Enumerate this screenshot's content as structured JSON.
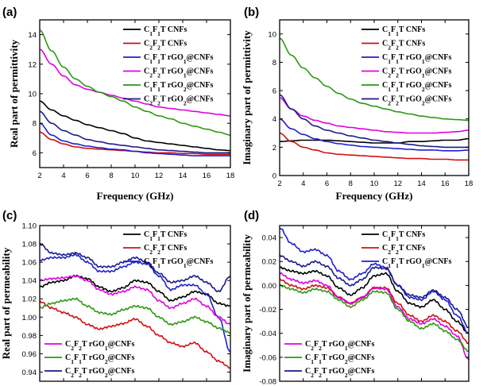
{
  "chart_data": [
    {
      "type": "line",
      "panel_label": "(a)",
      "title": "",
      "xlabel": "Frequency (GHz)",
      "ylabel": "Real part of permittivity",
      "xlim": [
        2,
        18
      ],
      "ylim": [
        5,
        15
      ],
      "xticks": [
        2,
        4,
        6,
        8,
        10,
        12,
        14,
        16,
        18
      ],
      "yticks": [
        6,
        8,
        10,
        12,
        14
      ],
      "legend_position": "top-right",
      "x": [
        2,
        3,
        4,
        5,
        6,
        7,
        8,
        9,
        10,
        11,
        12,
        13,
        14,
        15,
        16,
        17,
        18
      ],
      "series": [
        {
          "name": "C1F1T CNFs",
          "color": "#000000",
          "values": [
            9.5,
            8.9,
            8.5,
            8.2,
            7.9,
            7.7,
            7.5,
            7.3,
            7.0,
            6.8,
            6.7,
            6.6,
            6.5,
            6.4,
            6.3,
            6.2,
            6.15
          ]
        },
        {
          "name": "C2F2T CNFs",
          "color": "#d01010",
          "values": [
            7.4,
            6.9,
            6.6,
            6.4,
            6.3,
            6.25,
            6.2,
            6.15,
            6.1,
            6.05,
            6.0,
            6.0,
            5.95,
            5.95,
            5.9,
            5.9,
            5.9
          ]
        },
        {
          "name": "C1F1T rGO1@CNFs",
          "color": "#1f1fd0",
          "values": [
            8.0,
            7.2,
            6.8,
            6.6,
            6.45,
            6.35,
            6.25,
            6.2,
            6.1,
            6.0,
            5.95,
            5.9,
            5.85,
            5.8,
            5.8,
            5.8,
            5.8
          ]
        },
        {
          "name": "C2F2T rGO1@CNFs",
          "color": "#e000e0",
          "values": [
            13.0,
            12.0,
            11.2,
            10.6,
            10.3,
            10.1,
            9.9,
            9.7,
            9.5,
            9.3,
            9.1,
            9.0,
            8.9,
            8.8,
            8.7,
            8.6,
            8.5
          ]
        },
        {
          "name": "C1F1T rGO2@CNFs",
          "color": "#2a9a10",
          "values": [
            14.3,
            12.9,
            11.8,
            11.0,
            10.5,
            10.1,
            9.8,
            9.5,
            9.1,
            8.8,
            8.5,
            8.3,
            8.0,
            7.8,
            7.6,
            7.4,
            7.2
          ]
        },
        {
          "name": "C2F2T rGO2@CNFs",
          "color": "#1a1a8a",
          "values": [
            8.8,
            8.0,
            7.5,
            7.2,
            6.9,
            6.75,
            6.6,
            6.5,
            6.4,
            6.3,
            6.2,
            6.15,
            6.1,
            6.05,
            6.0,
            6.0,
            6.0
          ]
        }
      ]
    },
    {
      "type": "line",
      "panel_label": "(b)",
      "title": "",
      "xlabel": "Frequency (GHz)",
      "ylabel": "Imaginary part of permittivity",
      "xlim": [
        2,
        18
      ],
      "ylim": [
        0,
        11
      ],
      "xticks": [
        2,
        4,
        6,
        8,
        10,
        12,
        14,
        16,
        18
      ],
      "yticks": [
        0,
        2,
        4,
        6,
        8,
        10
      ],
      "legend_position": "top-right",
      "x": [
        2,
        3,
        4,
        5,
        6,
        7,
        8,
        9,
        10,
        11,
        12,
        13,
        14,
        15,
        16,
        17,
        18
      ],
      "series": [
        {
          "name": "C1F1T CNFs",
          "color": "#000000",
          "values": [
            2.4,
            2.45,
            2.5,
            2.5,
            2.5,
            2.45,
            2.4,
            2.35,
            2.3,
            2.3,
            2.3,
            2.4,
            2.4,
            2.45,
            2.5,
            2.5,
            2.6
          ]
        },
        {
          "name": "C2F2T CNFs",
          "color": "#d01010",
          "values": [
            3.0,
            2.4,
            2.0,
            1.8,
            1.6,
            1.5,
            1.45,
            1.4,
            1.35,
            1.3,
            1.25,
            1.2,
            1.2,
            1.15,
            1.15,
            1.1,
            1.1
          ]
        },
        {
          "name": "C1F1T rGO1@CNFs",
          "color": "#1f1fd0",
          "values": [
            4.0,
            3.3,
            2.9,
            2.6,
            2.4,
            2.25,
            2.15,
            2.05,
            2.0,
            1.95,
            1.9,
            1.85,
            1.8,
            1.8,
            1.75,
            1.75,
            1.8
          ]
        },
        {
          "name": "C2F2T rGO1@CNFs",
          "color": "#e000e0",
          "values": [
            5.5,
            4.7,
            4.2,
            3.9,
            3.7,
            3.5,
            3.4,
            3.3,
            3.2,
            3.1,
            3.05,
            3.0,
            3.0,
            3.0,
            3.05,
            3.1,
            3.2
          ]
        },
        {
          "name": "C1F1T rGO2@CNFs",
          "color": "#2a9a10",
          "values": [
            9.7,
            8.5,
            7.6,
            6.9,
            6.3,
            5.8,
            5.4,
            5.1,
            4.9,
            4.7,
            4.5,
            4.35,
            4.2,
            4.1,
            4.0,
            3.95,
            3.9
          ]
        },
        {
          "name": "C2F2T rGO2@CNFs",
          "color": "#1a1a8a",
          "values": [
            5.7,
            4.7,
            4.0,
            3.5,
            3.2,
            3.0,
            2.8,
            2.65,
            2.5,
            2.4,
            2.3,
            2.2,
            2.1,
            2.05,
            2.0,
            2.0,
            2.0
          ]
        }
      ]
    },
    {
      "type": "line",
      "panel_label": "(c)",
      "title": "",
      "xlabel": "",
      "ylabel": "Real part of permeability",
      "xlim": [
        2,
        18
      ],
      "ylim": [
        0.93,
        1.1
      ],
      "yticks": [
        "0.94",
        "0.96",
        "0.98",
        "1.00",
        "1.02",
        "1.04",
        "1.06",
        "1.08",
        "1.10"
      ],
      "legend_position": "top-right / bottom-left",
      "x": [
        2,
        3,
        4,
        5,
        6,
        7,
        8,
        9,
        10,
        11,
        12,
        13,
        14,
        15,
        16,
        17,
        18
      ],
      "series": [
        {
          "name": "C1F1T CNFs",
          "color": "#000000",
          "values": [
            1.033,
            1.038,
            1.04,
            1.045,
            1.042,
            1.033,
            1.028,
            1.032,
            1.04,
            1.038,
            1.028,
            1.018,
            1.022,
            1.028,
            1.025,
            1.015,
            1.012
          ]
        },
        {
          "name": "C2F2T CNFs",
          "color": "#d01010",
          "values": [
            1.017,
            1.01,
            1.005,
            1.0,
            0.992,
            0.987,
            0.99,
            0.993,
            0.998,
            0.99,
            0.98,
            0.972,
            0.968,
            0.972,
            0.962,
            0.952,
            0.945
          ]
        },
        {
          "name": "C1F1T rGO1@CNFs",
          "color": "#1f1fd0",
          "values": [
            1.062,
            1.065,
            1.065,
            1.068,
            1.06,
            1.05,
            1.05,
            1.055,
            1.06,
            1.058,
            1.045,
            1.03,
            1.035,
            1.035,
            1.025,
            1.0,
            0.962
          ]
        },
        {
          "name": "C2F2T rGO1@CNFs",
          "color": "#e000e0",
          "values": [
            1.04,
            1.042,
            1.043,
            1.045,
            1.04,
            1.03,
            1.025,
            1.028,
            1.033,
            1.03,
            1.018,
            1.01,
            1.015,
            1.02,
            1.012,
            1.0,
            0.992
          ]
        },
        {
          "name": "C1F1T rGO2@CNFs",
          "color": "#2a9a10",
          "values": [
            1.01,
            1.015,
            1.018,
            1.02,
            1.012,
            1.005,
            1.003,
            1.008,
            1.012,
            1.01,
            1.0,
            0.992,
            0.995,
            1.0,
            0.995,
            0.988,
            0.983
          ]
        },
        {
          "name": "C2F2T rGO2@CNFs",
          "color": "#1a1a8a",
          "values": [
            1.08,
            1.07,
            1.068,
            1.07,
            1.065,
            1.055,
            1.055,
            1.06,
            1.065,
            1.06,
            1.048,
            1.038,
            1.04,
            1.045,
            1.038,
            1.028,
            1.045
          ]
        }
      ]
    },
    {
      "type": "line",
      "panel_label": "(d)",
      "title": "",
      "xlabel": "",
      "ylabel": "Imaginary part of permeability",
      "xlim": [
        2,
        18
      ],
      "ylim": [
        -0.08,
        0.05
      ],
      "yticks": [
        "-0.08",
        "-0.06",
        "-0.04",
        "-0.02",
        "0.00",
        "0.02",
        "0.04"
      ],
      "legend_position": "top-right / bottom-left",
      "x": [
        2,
        3,
        4,
        5,
        6,
        7,
        8,
        9,
        10,
        11,
        12,
        13,
        14,
        15,
        16,
        17,
        18
      ],
      "series": [
        {
          "name": "C1F1T CNFs",
          "color": "#000000",
          "values": [
            0.015,
            0.012,
            0.01,
            0.012,
            0.008,
            -0.002,
            -0.008,
            -0.002,
            0.008,
            0.01,
            -0.005,
            -0.015,
            -0.018,
            -0.012,
            -0.02,
            -0.03,
            -0.04
          ]
        },
        {
          "name": "C2F2T CNFs",
          "color": "#d01010",
          "values": [
            0.005,
            0.0,
            -0.003,
            0.0,
            -0.002,
            -0.01,
            -0.015,
            -0.01,
            -0.002,
            -0.002,
            -0.015,
            -0.025,
            -0.03,
            -0.025,
            -0.03,
            -0.038,
            -0.048
          ]
        },
        {
          "name": "C1F1T rGO1@CNFs",
          "color": "#1f1fd0",
          "values": [
            0.048,
            0.035,
            0.028,
            0.03,
            0.025,
            0.012,
            0.005,
            0.01,
            0.018,
            0.015,
            0.0,
            -0.01,
            -0.012,
            -0.005,
            -0.012,
            -0.025,
            -0.04
          ]
        },
        {
          "name": "C2F2T rGO1@CNFs",
          "color": "#e000e0",
          "values": [
            0.01,
            0.005,
            0.002,
            0.004,
            0.0,
            -0.01,
            -0.015,
            -0.01,
            -0.002,
            -0.003,
            -0.018,
            -0.028,
            -0.032,
            -0.028,
            -0.034,
            -0.042,
            -0.062
          ]
        },
        {
          "name": "C1F1T rGO2@CNFs",
          "color": "#2a9a10",
          "values": [
            0.0,
            -0.003,
            -0.006,
            -0.003,
            -0.005,
            -0.012,
            -0.018,
            -0.012,
            -0.005,
            -0.006,
            -0.02,
            -0.03,
            -0.036,
            -0.032,
            -0.038,
            -0.045,
            -0.055
          ]
        },
        {
          "name": "C2F2T rGO2@CNFs",
          "color": "#1a1a8a",
          "values": [
            0.025,
            0.02,
            0.016,
            0.02,
            0.016,
            0.006,
            0.0,
            0.005,
            0.015,
            0.014,
            0.0,
            -0.008,
            -0.01,
            -0.004,
            -0.01,
            -0.02,
            -0.035
          ]
        }
      ]
    }
  ]
}
